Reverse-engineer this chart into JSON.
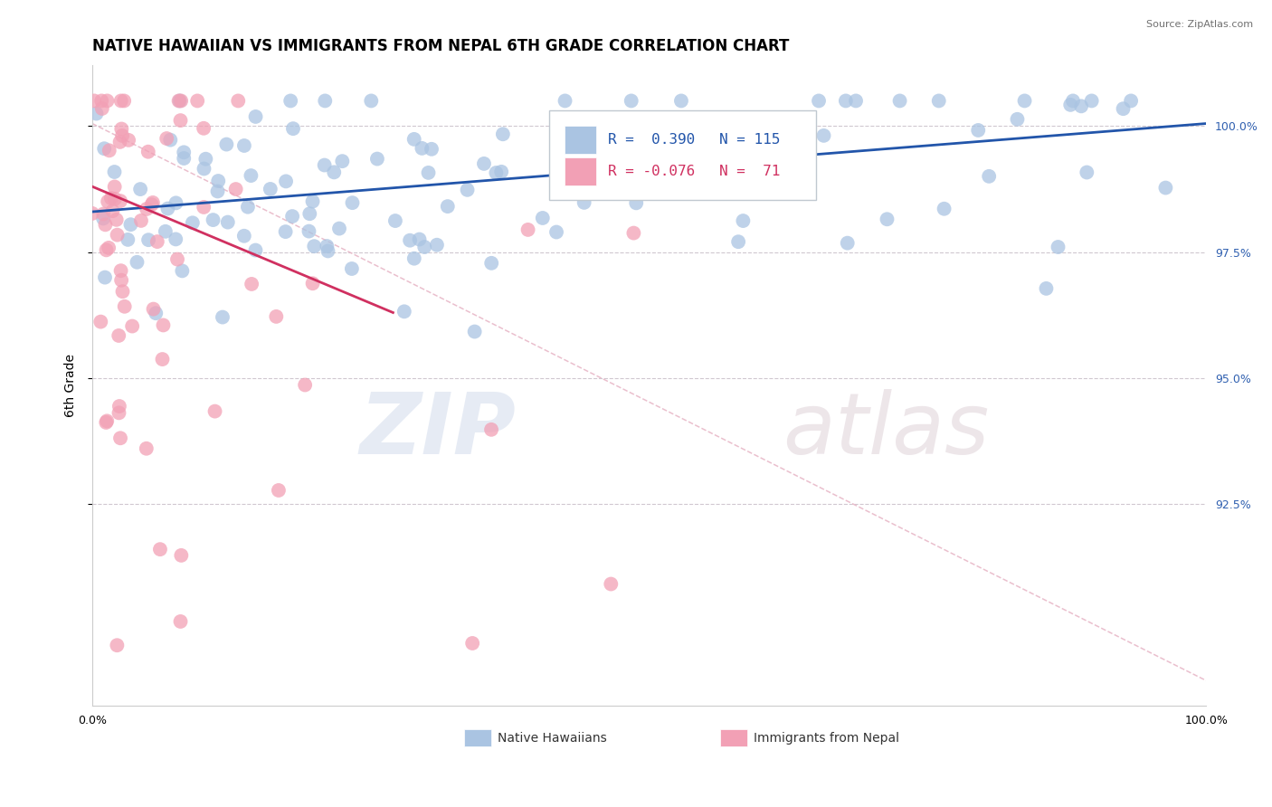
{
  "title": "NATIVE HAWAIIAN VS IMMIGRANTS FROM NEPAL 6TH GRADE CORRELATION CHART",
  "source": "Source: ZipAtlas.com",
  "ylabel": "6th Grade",
  "y_min": 88.5,
  "y_max": 101.2,
  "y_ticks": [
    92.5,
    95.0,
    97.5,
    100.0
  ],
  "y_tick_labels": [
    "92.5%",
    "95.0%",
    "97.5%",
    "100.0%"
  ],
  "x_ticks": [
    0,
    100
  ],
  "x_tick_labels": [
    "0.0%",
    "100.0%"
  ],
  "blue_color": "#aac4e2",
  "pink_color": "#f2a0b5",
  "blue_line_color": "#2255aa",
  "pink_line_color": "#d03060",
  "dashed_line_color": "#e8b8c8",
  "watermark_zip": "ZIP",
  "watermark_atlas": "atlas",
  "legend_r_blue": "R =  0.390",
  "legend_n_blue": "N = 115",
  "legend_r_pink": "R = -0.076",
  "legend_n_pink": "N =  71",
  "blue_line_x": [
    0,
    100
  ],
  "blue_line_y": [
    98.3,
    100.05
  ],
  "pink_line_x": [
    0,
    27
  ],
  "pink_line_y": [
    98.8,
    96.3
  ],
  "dash_line_x": [
    0,
    100
  ],
  "dash_line_y": [
    100.05,
    89.0
  ],
  "title_fontsize": 12,
  "tick_fontsize": 9
}
